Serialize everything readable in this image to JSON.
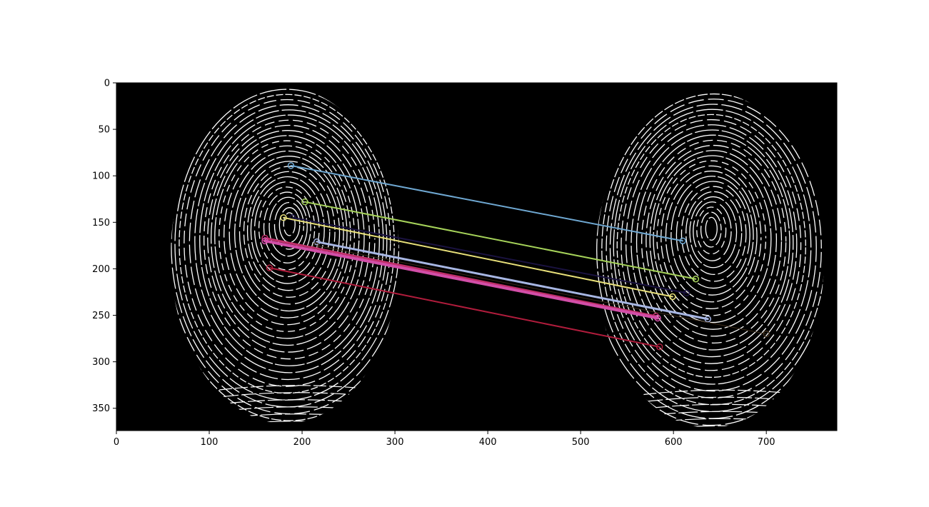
{
  "chart_data": {
    "type": "image",
    "title": "",
    "xlabel": "",
    "ylabel": "",
    "xlim": [
      0,
      776
    ],
    "ylim": [
      374,
      0
    ],
    "x_ticks": [
      0,
      100,
      200,
      300,
      400,
      500,
      600,
      700
    ],
    "y_ticks": [
      0,
      50,
      100,
      150,
      200,
      250,
      300,
      350
    ],
    "x_tick_labels": [
      "0",
      "100",
      "200",
      "300",
      "400",
      "500",
      "600",
      "700"
    ],
    "y_tick_labels": [
      "0",
      "50",
      "100",
      "150",
      "200",
      "250",
      "300",
      "350"
    ],
    "background_color": "#000000",
    "ridge_color": "#ffffff",
    "fingerprints": [
      {
        "name": "left",
        "center": [
          185,
          175
        ],
        "rx_half": 123,
        "ry_half": 180
      },
      {
        "name": "right",
        "center": [
          642,
          180
        ],
        "rx_half": 123,
        "ry_half": 180
      }
    ],
    "matches": [
      {
        "x1": 188,
        "y1": 89,
        "x2": 610,
        "y2": 170,
        "color": "#6fa8d2",
        "width": 2
      },
      {
        "x1": 203,
        "y1": 128,
        "x2": 624,
        "y2": 211,
        "color": "#a6d35a",
        "width": 2
      },
      {
        "x1": 190,
        "y1": 145,
        "x2": 614,
        "y2": 226,
        "color": "#1a1240",
        "width": 2
      },
      {
        "x1": 180,
        "y1": 145,
        "x2": 599,
        "y2": 230,
        "color": "#e8e07a",
        "width": 2
      },
      {
        "x1": 216,
        "y1": 171,
        "x2": 637,
        "y2": 254,
        "color": "#a7b6e3",
        "width": 3
      },
      {
        "x1": 215,
        "y1": 175,
        "x2": 700,
        "y2": 270,
        "color": "#3a2a18",
        "width": 1
      },
      {
        "x1": 160,
        "y1": 167,
        "x2": 581,
        "y2": 251,
        "color": "#c0306a",
        "width": 3
      },
      {
        "x1": 160,
        "y1": 170,
        "x2": 583,
        "y2": 253,
        "color": "#d24ea8",
        "width": 4
      },
      {
        "x1": 165,
        "y1": 199,
        "x2": 585,
        "y2": 284,
        "color": "#b01c3c",
        "width": 2
      }
    ]
  }
}
